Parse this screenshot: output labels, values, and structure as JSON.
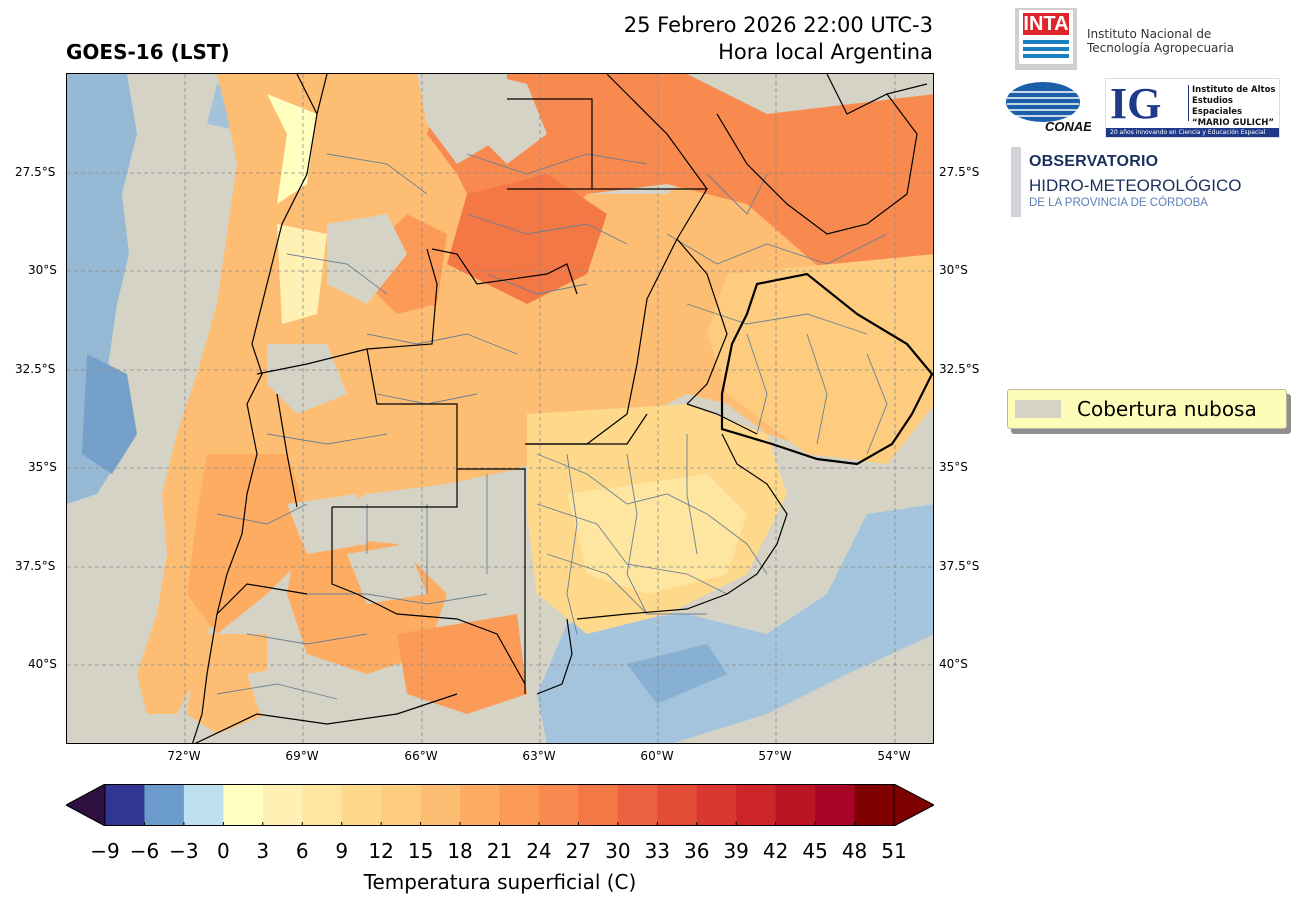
{
  "header": {
    "title": "GOES-16 (LST)",
    "datetime": "25 Febrero 2026 22:00 UTC-3",
    "subtitle": "Hora local Argentina"
  },
  "map": {
    "lat_labels": [
      "27.5°S",
      "30°S",
      "32.5°S",
      "35°S",
      "37.5°S",
      "40°S"
    ],
    "lon_labels": [
      "72°W",
      "69°W",
      "66°W",
      "63°W",
      "60°W",
      "57°W",
      "54°W"
    ]
  },
  "legend": {
    "label": "Cobertura nubosa",
    "color": "#d5d3c6"
  },
  "colorbar": {
    "label": "Temperatura superficial (C)",
    "ticks": [
      "−9",
      "−6",
      "−3",
      "0",
      "3",
      "6",
      "9",
      "12",
      "15",
      "18",
      "21",
      "24",
      "27",
      "30",
      "33",
      "36",
      "39",
      "42",
      "45",
      "48",
      "51"
    ],
    "under_color": "#2d1040",
    "over_color": "#7f0000",
    "colors": [
      "#313695",
      "#6a9bcb",
      "#bde0ee",
      "#ffffc0",
      "#fff1b4",
      "#ffe6a0",
      "#fed98b",
      "#fdcc7e",
      "#fdbd72",
      "#fdac62",
      "#fc9b57",
      "#f88a4f",
      "#f47746",
      "#ec6140",
      "#e34c37",
      "#d83830",
      "#cc2628",
      "#bb1525",
      "#a80426",
      "#7f0000"
    ]
  },
  "logos": {
    "inta_word": "INTA",
    "inta_text_1": "Instituto Nacional de",
    "inta_text_2": "Tecnología Agropecuaria",
    "conae_word": "CONAE",
    "ig_letters": "IG",
    "ig_text_1": "Instituto de Altos",
    "ig_text_2": "Estudios Espaciales",
    "ig_text_3": "“MARIO GULICH”",
    "ig_bar": "20 años innovando en Ciencia y Educación Espacial",
    "obs_line1": "OBSERVATORIO",
    "obs_line2": "HIDRO-METEOROLÓGICO",
    "obs_line3": "DE LA PROVINCIA DE CÓRDOBA"
  }
}
